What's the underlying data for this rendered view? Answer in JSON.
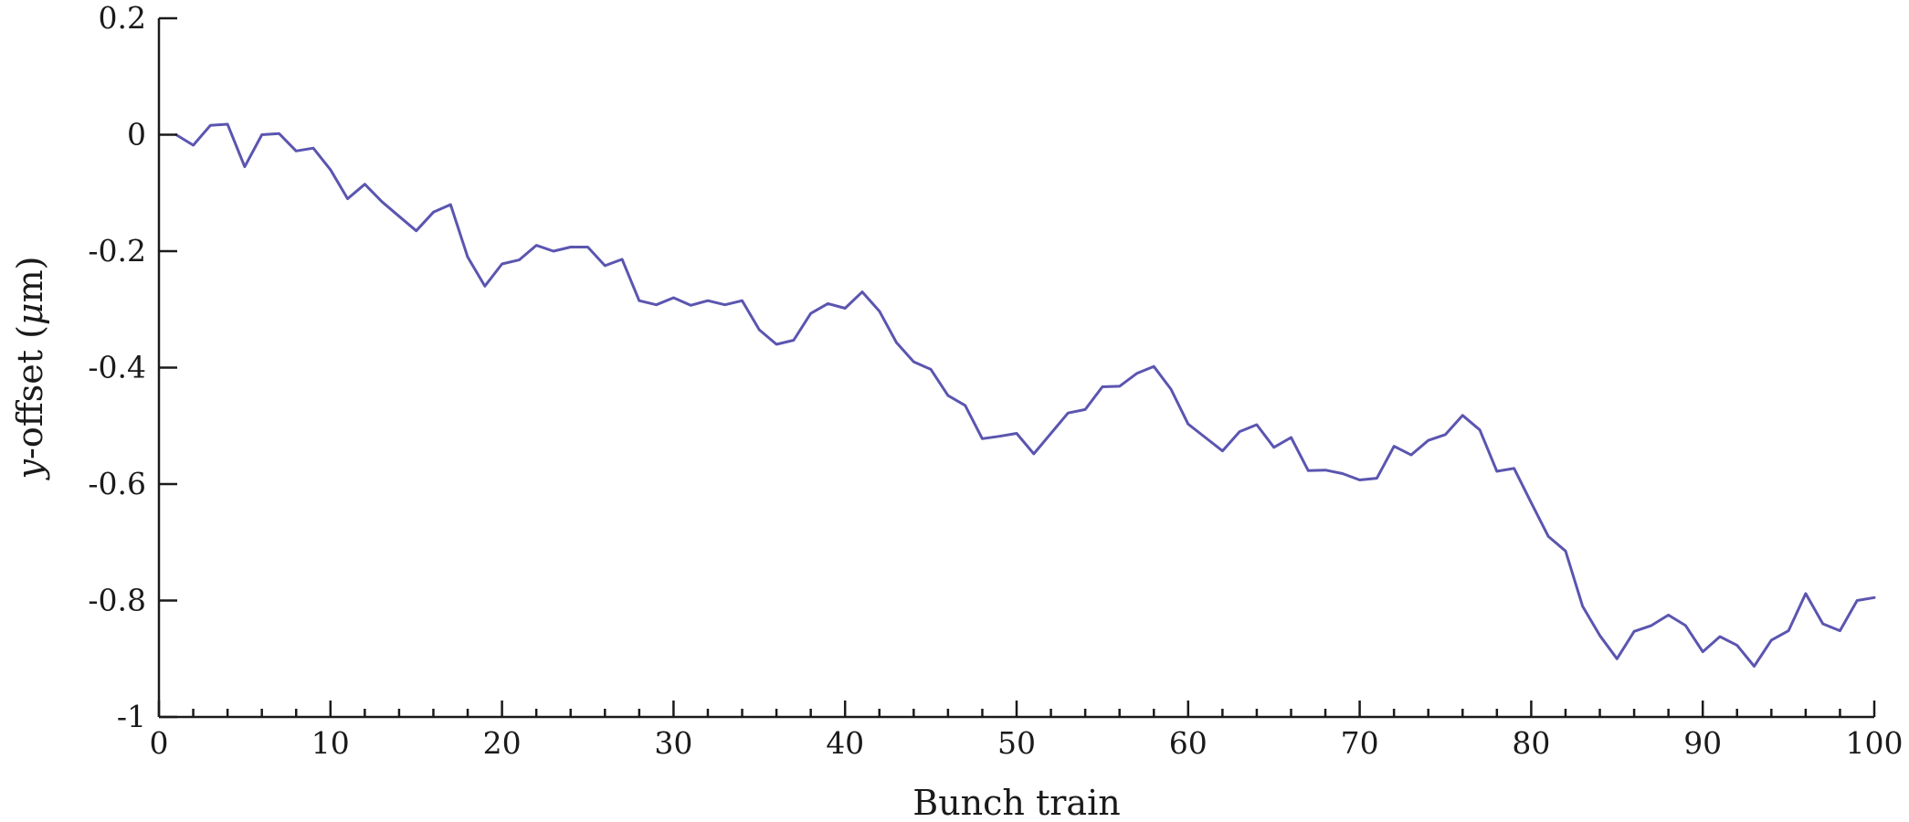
{
  "chart_data": {
    "type": "line",
    "xlabel": "Bunch train",
    "ylabel_prefix": "y",
    "ylabel_rest": "-offset (",
    "ylabel_mu": "μ",
    "ylabel_unit": "m)",
    "xlim": [
      0,
      100
    ],
    "ylim": [
      -1,
      0.2
    ],
    "xticks": [
      0,
      10,
      20,
      30,
      40,
      50,
      60,
      70,
      80,
      90,
      100
    ],
    "xtick_labels": [
      "0",
      "10",
      "20",
      "30",
      "40",
      "50",
      "60",
      "70",
      "80",
      "90",
      "100"
    ],
    "xminor_step": 2,
    "yticks": [
      -1,
      -0.8,
      -0.6,
      -0.4,
      -0.2,
      0,
      0.2
    ],
    "ytick_labels": [
      "-1",
      "-0.8",
      "-0.6",
      "-0.4",
      "-0.2",
      "0",
      "0.2"
    ],
    "grid": false,
    "line_color": "#5b55b0",
    "x": [
      1,
      2,
      3,
      4,
      5,
      6,
      7,
      8,
      9,
      10,
      11,
      12,
      13,
      14,
      15,
      16,
      17,
      18,
      19,
      20,
      21,
      22,
      23,
      24,
      25,
      26,
      27,
      28,
      29,
      30,
      31,
      32,
      33,
      34,
      35,
      36,
      37,
      38,
      39,
      40,
      41,
      42,
      43,
      44,
      45,
      46,
      47,
      48,
      49,
      50,
      51,
      52,
      53,
      54,
      55,
      56,
      57,
      58,
      59,
      60,
      61,
      62,
      63,
      64,
      65,
      66,
      67,
      68,
      69,
      70,
      71,
      72,
      73,
      74,
      75,
      76,
      77,
      78,
      79,
      80,
      81,
      82,
      83,
      84,
      85,
      86,
      87,
      88,
      89,
      90,
      91,
      92,
      93,
      94,
      95,
      96,
      97,
      98,
      99,
      100
    ],
    "y": [
      0.0,
      -0.018,
      0.016,
      0.018,
      -0.055,
      0.0,
      0.002,
      -0.028,
      -0.023,
      -0.06,
      -0.11,
      -0.085,
      -0.115,
      -0.14,
      -0.165,
      -0.133,
      -0.12,
      -0.21,
      -0.26,
      -0.222,
      -0.215,
      -0.19,
      -0.2,
      -0.193,
      -0.193,
      -0.225,
      -0.214,
      -0.285,
      -0.292,
      -0.28,
      -0.293,
      -0.285,
      -0.292,
      -0.285,
      -0.335,
      -0.36,
      -0.353,
      -0.307,
      -0.29,
      -0.298,
      -0.27,
      -0.303,
      -0.357,
      -0.39,
      -0.403,
      -0.448,
      -0.465,
      -0.522,
      -0.518,
      -0.513,
      -0.548,
      -0.513,
      -0.478,
      -0.472,
      -0.433,
      -0.432,
      -0.41,
      -0.398,
      -0.437,
      -0.497,
      -0.52,
      -0.543,
      -0.51,
      -0.498,
      -0.537,
      -0.52,
      -0.577,
      -0.576,
      -0.582,
      -0.593,
      -0.59,
      -0.535,
      -0.55,
      -0.525,
      -0.515,
      -0.482,
      -0.507,
      -0.578,
      -0.573,
      -0.632,
      -0.69,
      -0.715,
      -0.81,
      -0.86,
      -0.9,
      -0.853,
      -0.843,
      -0.825,
      -0.843,
      -0.888,
      -0.862,
      -0.877,
      -0.913,
      -0.868,
      -0.852,
      -0.788,
      -0.84,
      -0.852,
      -0.8,
      -0.795
    ]
  }
}
